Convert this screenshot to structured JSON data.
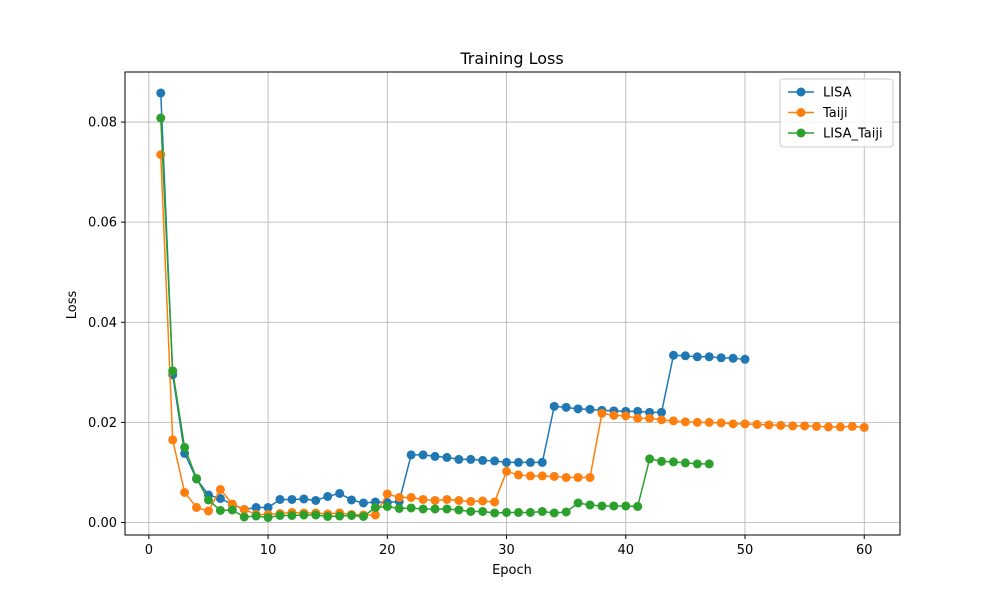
{
  "chart_data": {
    "type": "line",
    "title": "Training Loss",
    "xlabel": "Epoch",
    "ylabel": "Loss",
    "xlim": [
      -2,
      63
    ],
    "ylim": [
      -0.0025,
      0.09
    ],
    "xticks": [
      0,
      10,
      20,
      30,
      40,
      50,
      60
    ],
    "yticks": [
      0.0,
      0.02,
      0.04,
      0.06,
      0.08
    ],
    "xtick_labels": [
      "0",
      "10",
      "20",
      "30",
      "40",
      "50",
      "60"
    ],
    "ytick_labels": [
      "0.00",
      "0.02",
      "0.04",
      "0.06",
      "0.08"
    ],
    "grid": true,
    "legend_position": "top-right",
    "series": [
      {
        "name": "LISA",
        "color": "#1f77b4",
        "x": [
          1,
          2,
          3,
          4,
          5,
          6,
          7,
          8,
          9,
          10,
          11,
          12,
          13,
          14,
          15,
          16,
          17,
          18,
          19,
          20,
          21,
          22,
          23,
          24,
          25,
          26,
          27,
          28,
          29,
          30,
          31,
          32,
          33,
          34,
          35,
          36,
          37,
          38,
          39,
          40,
          41,
          42,
          43,
          44,
          45,
          46,
          47,
          48,
          49,
          50
        ],
        "y": [
          0.0858,
          0.0295,
          0.0138,
          0.0087,
          0.0055,
          0.0048,
          0.0036,
          0.0026,
          0.003,
          0.003,
          0.0046,
          0.0046,
          0.0047,
          0.0044,
          0.0052,
          0.0058,
          0.0045,
          0.0039,
          0.0041,
          0.004,
          0.0042,
          0.0135,
          0.0135,
          0.0132,
          0.013,
          0.0126,
          0.0126,
          0.0124,
          0.0123,
          0.012,
          0.012,
          0.012,
          0.012,
          0.0232,
          0.023,
          0.0227,
          0.0226,
          0.0224,
          0.0223,
          0.0222,
          0.0222,
          0.022,
          0.022,
          0.0334,
          0.0333,
          0.0331,
          0.0331,
          0.0329,
          0.0328,
          0.0326
        ]
      },
      {
        "name": "Taiji",
        "color": "#ff7f0e",
        "x": [
          1,
          2,
          3,
          4,
          5,
          6,
          7,
          8,
          9,
          10,
          11,
          12,
          13,
          14,
          15,
          16,
          17,
          18,
          19,
          20,
          21,
          22,
          23,
          24,
          25,
          26,
          27,
          28,
          29,
          30,
          31,
          32,
          33,
          34,
          35,
          36,
          37,
          38,
          39,
          40,
          41,
          42,
          43,
          44,
          45,
          46,
          47,
          48,
          49,
          50,
          51,
          52,
          53,
          54,
          55,
          56,
          57,
          58,
          59,
          60
        ],
        "y": [
          0.0735,
          0.0165,
          0.006,
          0.003,
          0.0023,
          0.0066,
          0.0037,
          0.0026,
          0.0016,
          0.0016,
          0.0018,
          0.002,
          0.0019,
          0.0019,
          0.0017,
          0.0019,
          0.0016,
          0.0015,
          0.0015,
          0.0057,
          0.005,
          0.005,
          0.0046,
          0.0044,
          0.0046,
          0.0044,
          0.0042,
          0.0043,
          0.0041,
          0.0102,
          0.0095,
          0.0093,
          0.0093,
          0.0092,
          0.009,
          0.009,
          0.009,
          0.0218,
          0.0214,
          0.0213,
          0.0208,
          0.0208,
          0.0205,
          0.0203,
          0.0201,
          0.02,
          0.02,
          0.0199,
          0.0197,
          0.0197,
          0.0196,
          0.0195,
          0.0194,
          0.0193,
          0.0193,
          0.0192,
          0.0191,
          0.0191,
          0.0192,
          0.019
        ]
      },
      {
        "name": "LISA_Taiji",
        "color": "#2ca02c",
        "x": [
          1,
          2,
          3,
          4,
          5,
          6,
          7,
          8,
          9,
          10,
          11,
          12,
          13,
          14,
          15,
          16,
          17,
          18,
          19,
          20,
          21,
          22,
          23,
          24,
          25,
          26,
          27,
          28,
          29,
          30,
          31,
          32,
          33,
          34,
          35,
          36,
          37,
          38,
          39,
          40,
          41,
          42,
          43,
          44,
          45,
          46,
          47
        ],
        "y": [
          0.0808,
          0.0303,
          0.015,
          0.0088,
          0.0045,
          0.0024,
          0.0025,
          0.0011,
          0.0013,
          0.001,
          0.0014,
          0.0014,
          0.0015,
          0.0015,
          0.0012,
          0.0013,
          0.0014,
          0.0012,
          0.003,
          0.0032,
          0.0028,
          0.0029,
          0.0027,
          0.0027,
          0.0027,
          0.0025,
          0.0022,
          0.0022,
          0.0019,
          0.002,
          0.002,
          0.002,
          0.0022,
          0.0019,
          0.0021,
          0.0039,
          0.0035,
          0.0033,
          0.0033,
          0.0033,
          0.0032,
          0.0127,
          0.0122,
          0.0121,
          0.0119,
          0.0117,
          0.0117
        ]
      }
    ]
  }
}
